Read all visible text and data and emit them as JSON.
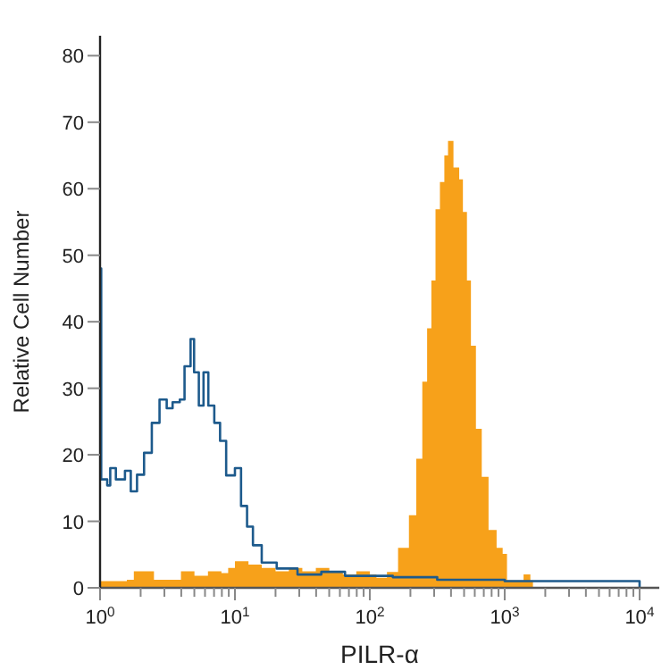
{
  "chart_data": {
    "type": "area",
    "xlabel": "PILR-α",
    "ylabel": "Relative Cell Number",
    "log": "x",
    "xlim": [
      1,
      14000
    ],
    "ylim": [
      0,
      83
    ],
    "xticks": [
      {
        "value": 1,
        "label": "10$^{0}$"
      },
      {
        "value": 2,
        "label": null
      },
      {
        "value": 3,
        "label": null
      },
      {
        "value": 4,
        "label": null
      },
      {
        "value": 5,
        "label": null
      },
      {
        "value": 6,
        "label": null
      },
      {
        "value": 7,
        "label": null
      },
      {
        "value": 8,
        "label": null
      },
      {
        "value": 9,
        "label": null
      },
      {
        "value": 10,
        "label": "10$^{1}$"
      },
      {
        "value": 20,
        "label": null
      },
      {
        "value": 30,
        "label": null
      },
      {
        "value": 40,
        "label": null
      },
      {
        "value": 50,
        "label": null
      },
      {
        "value": 60,
        "label": null
      },
      {
        "value": 70,
        "label": null
      },
      {
        "value": 80,
        "label": null
      },
      {
        "value": 90,
        "label": null
      },
      {
        "value": 100,
        "label": "10$^{2}$"
      },
      {
        "value": 200,
        "label": null
      },
      {
        "value": 300,
        "label": null
      },
      {
        "value": 400,
        "label": null
      },
      {
        "value": 500,
        "label": null
      },
      {
        "value": 600,
        "label": null
      },
      {
        "value": 700,
        "label": null
      },
      {
        "value": 800,
        "label": null
      },
      {
        "value": 900,
        "label": null
      },
      {
        "value": 1000,
        "label": "10$^{3}$"
      },
      {
        "value": 2000,
        "label": null
      },
      {
        "value": 3000,
        "label": null
      },
      {
        "value": 4000,
        "label": null
      },
      {
        "value": 5000,
        "label": null
      },
      {
        "value": 6000,
        "label": null
      },
      {
        "value": 7000,
        "label": null
      },
      {
        "value": 8000,
        "label": null
      },
      {
        "value": 9000,
        "label": null
      },
      {
        "value": 10000,
        "label": "10$^{4}$"
      }
    ],
    "yticks": [
      0,
      10,
      20,
      30,
      40,
      50,
      60,
      70,
      80
    ],
    "grid": false,
    "series": [
      {
        "color": "#f7a11a",
        "x": [
          1,
          1.58,
          1.78,
          2.24,
          2.51,
          3.55,
          3.98,
          5.01,
          6.31,
          7.94,
          8.91,
          10,
          12.6,
          15.8,
          20,
          25.1,
          31.6,
          39.8,
          50.1,
          63.1,
          79.4,
          100,
          112,
          134,
          162,
          195,
          221,
          245,
          266,
          286,
          307,
          331,
          357,
          380,
          417,
          460,
          490,
          525,
          562,
          612,
          676,
          759,
          871,
          966,
          1040,
          1380,
          1550,
          1620
        ],
        "values": [
          1,
          1.2,
          2.5,
          2.5,
          1.2,
          1.2,
          2.5,
          1.8,
          2.5,
          2.2,
          3,
          4,
          3.5,
          3,
          2.5,
          3,
          2.5,
          3,
          2.5,
          2,
          2.5,
          2,
          1.5,
          2.4,
          6,
          10.9,
          19.4,
          31,
          39,
          46.2,
          56.9,
          61,
          65,
          67.2,
          63.2,
          61.4,
          56.5,
          46.2,
          36.4,
          23.9,
          16.7,
          8.7,
          6,
          5.1,
          1.1,
          2,
          1.1,
          0
        ]
      },
      {
        "type": "step",
        "color": "#1d5a8c",
        "x": [
          1,
          1.02,
          1.13,
          1.19,
          1.31,
          1.53,
          1.69,
          1.88,
          2.12,
          2.42,
          2.76,
          3.12,
          3.45,
          3.9,
          4.23,
          4.69,
          4.98,
          5.4,
          5.85,
          6.35,
          7.03,
          7.76,
          8.61,
          10,
          11.1,
          12.3,
          13.6,
          15.8,
          20.4,
          29.1,
          43.7,
          65.5,
          148,
          316,
          1000,
          3160,
          10000
        ],
        "values": [
          48,
          16.3,
          15.4,
          18,
          16.3,
          17.6,
          14.5,
          17,
          20.3,
          24.8,
          28.3,
          27,
          27.9,
          28.3,
          33.3,
          37.4,
          32.4,
          27.4,
          32.4,
          27.4,
          24.8,
          22.1,
          16.9,
          18,
          12.3,
          9.2,
          6.4,
          3.8,
          2.9,
          2,
          2.4,
          1.8,
          1.6,
          1.2,
          1,
          1,
          0
        ]
      }
    ]
  }
}
